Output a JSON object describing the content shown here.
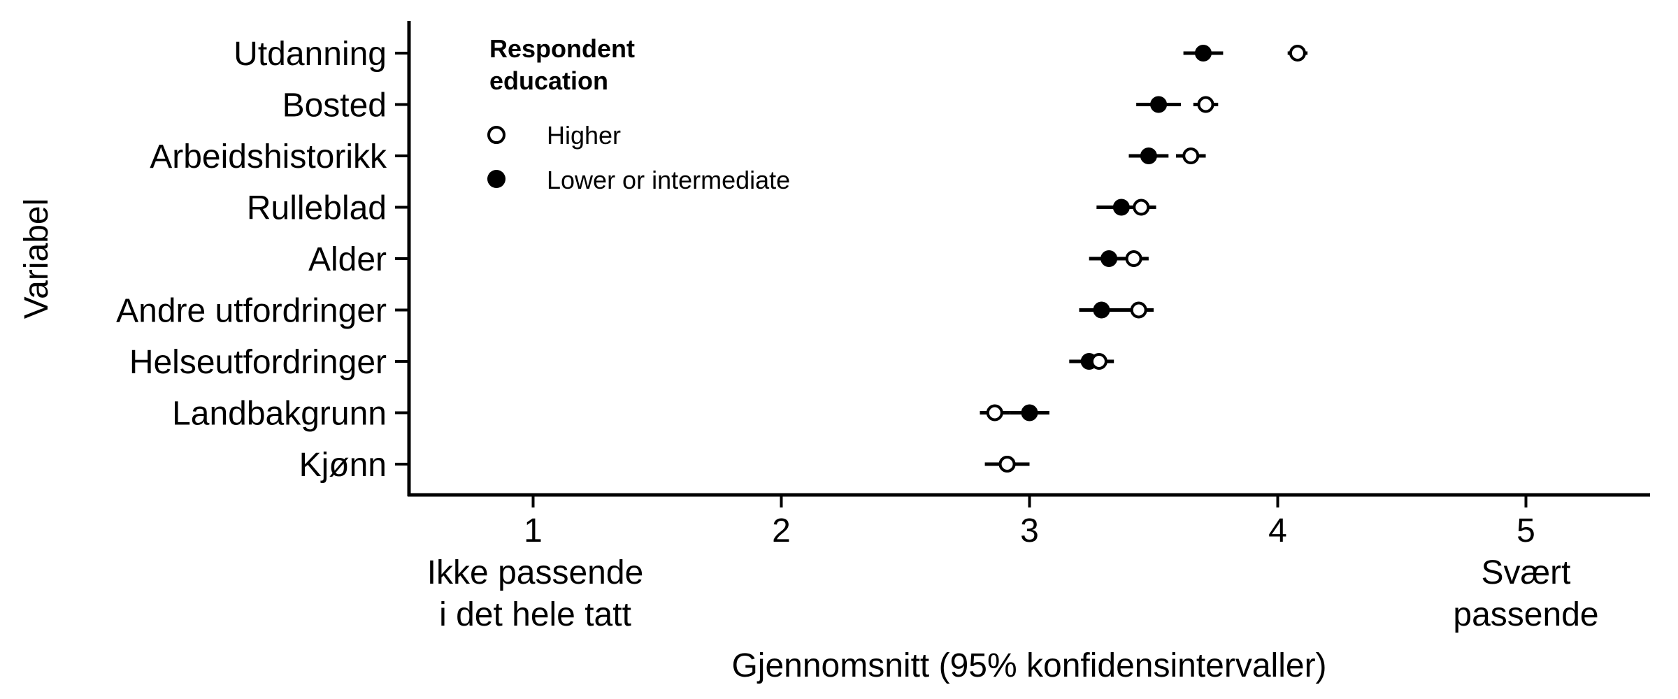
{
  "chart_data": {
    "type": "scatter",
    "xlabel": "Gjennomsnitt (95% konfidensintervaller)",
    "ylabel": "Variabel",
    "xlim": [
      0.5,
      5.5
    ],
    "x_ticks": [
      1,
      2,
      3,
      4,
      5
    ],
    "x_tick_sublabels": {
      "1": [
        "Ikke passende",
        "i det hele tatt"
      ],
      "5": [
        "Svært",
        "passende"
      ]
    },
    "categories": [
      "Utdanning",
      "Bosted",
      "Arbeidshistorikk",
      "Rulleblad",
      "Alder",
      "Andre utfordringer",
      "Helseutfordringer",
      "Landbakgrunn",
      "Kjønn"
    ],
    "legend": {
      "title": [
        "Respondent",
        "education"
      ],
      "position": "top-left"
    },
    "grid": false,
    "series": [
      {
        "name": "Higher",
        "marker": "open-circle",
        "mean": [
          4.08,
          3.71,
          3.65,
          3.45,
          3.42,
          3.44,
          3.28,
          2.86,
          2.91
        ],
        "lower": [
          4.04,
          3.66,
          3.59,
          3.38,
          3.36,
          3.37,
          3.22,
          2.8,
          2.86
        ],
        "upper": [
          4.12,
          3.76,
          3.71,
          3.51,
          3.48,
          3.5,
          3.34,
          2.92,
          2.96
        ]
      },
      {
        "name": "Lower or intermediate",
        "marker": "filled-circle",
        "mean": [
          3.7,
          3.52,
          3.48,
          3.37,
          3.32,
          3.29,
          3.24,
          3.0,
          2.91
        ],
        "lower": [
          3.62,
          3.43,
          3.4,
          3.27,
          3.24,
          3.2,
          3.16,
          2.92,
          2.82
        ],
        "upper": [
          3.78,
          3.61,
          3.56,
          3.47,
          3.4,
          3.38,
          3.32,
          3.08,
          3.0
        ]
      }
    ]
  }
}
